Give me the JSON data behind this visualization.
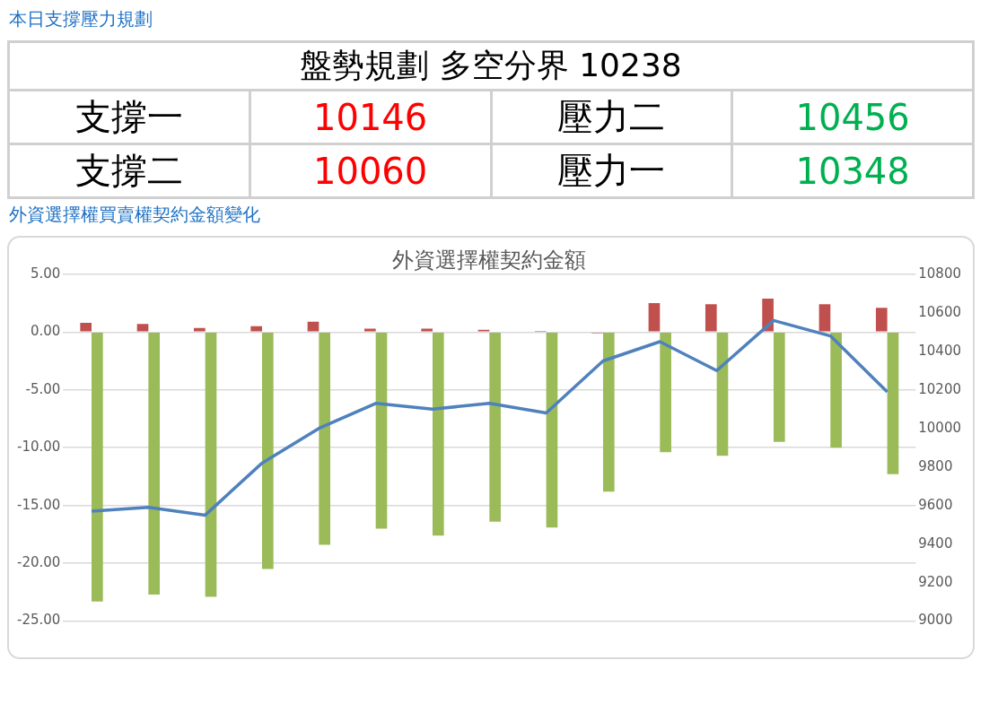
{
  "chart_data": [
    {
      "type": "other",
      "title": "本日支撐壓力規劃",
      "annotations": [
        "盤勢規劃 多空分界 10238",
        "支撐一",
        "10146",
        "壓力二",
        "10456",
        "支撐二",
        "10060",
        "壓力一",
        "10348"
      ]
    },
    {
      "type": "bar",
      "subtitle": "外資選擇權買賣權契約金額變化",
      "title": "外資選擇權契約金額",
      "categories": [
        null,
        null,
        null,
        null,
        null,
        null,
        null,
        null,
        null,
        null,
        null,
        null,
        null,
        null,
        null
      ],
      "series": [
        {
          "type": "bar",
          "color": "#c0504d",
          "values": [
            0.8,
            0.7,
            0.35,
            0.5,
            0.9,
            0.3,
            0.3,
            0.2,
            0.1,
            -0.1,
            2.5,
            2.4,
            2.9,
            2.4,
            2.1
          ]
        },
        {
          "type": "bar",
          "color": "#9bbb59",
          "values": [
            -23.3,
            -22.7,
            -22.9,
            -20.5,
            -18.4,
            -17.0,
            -17.6,
            -16.4,
            -16.9,
            -13.8,
            -10.4,
            -10.7,
            -9.5,
            -10.0,
            -12.3
          ]
        },
        {
          "type": "line",
          "axis": "y2",
          "color": "#4f81bd",
          "values": [
            9570,
            9590,
            9550,
            9820,
            10000,
            10130,
            10100,
            10130,
            10080,
            10350,
            10450,
            10300,
            10560,
            10480,
            10190
          ]
        }
      ],
      "ylim": [
        -25,
        5
      ],
      "yticks": [
        {
          "value": -25,
          "label": "-25.00"
        },
        {
          "value": -20,
          "label": "-20.00"
        },
        {
          "value": -15,
          "label": "-15.00"
        },
        {
          "value": -10,
          "label": "-10.00"
        },
        {
          "value": -5,
          "label": "-5.00"
        },
        {
          "value": 0,
          "label": "0.00"
        },
        {
          "value": 5,
          "label": "5.00"
        }
      ],
      "y2lim": [
        9000,
        10800
      ],
      "y2ticks": [
        9000,
        9200,
        9400,
        9600,
        9800,
        10000,
        10200,
        10400,
        10600,
        10800
      ],
      "grid": "y",
      "legend": false,
      "marker": "none",
      "line_style": "solid"
    }
  ]
}
